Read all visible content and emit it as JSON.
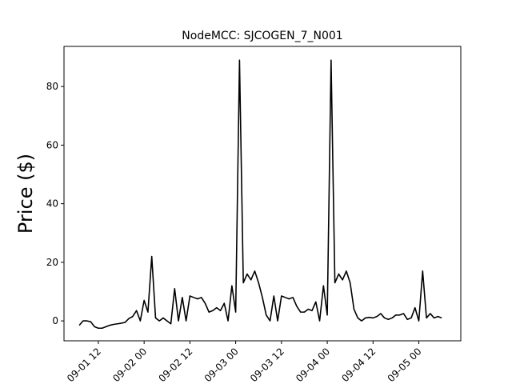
{
  "chart_data": {
    "type": "line",
    "title": "NodeMCC: SJCOGEN_7_N001",
    "y_label": "Price ($)",
    "x": [
      "09-01 07",
      "09-01 08",
      "09-01 09",
      "09-01 10",
      "09-01 11",
      "09-01 12",
      "09-01 13",
      "09-01 14",
      "09-01 15",
      "09-01 16",
      "09-01 17",
      "09-01 18",
      "09-01 19",
      "09-01 20",
      "09-01 21",
      "09-01 22",
      "09-01 23",
      "09-02 00",
      "09-02 01",
      "09-02 02",
      "09-02 03",
      "09-02 04",
      "09-02 05",
      "09-02 06",
      "09-02 07",
      "09-02 08",
      "09-02 09",
      "09-02 10",
      "09-02 11",
      "09-02 12",
      "09-02 13",
      "09-02 14",
      "09-02 15",
      "09-02 16",
      "09-02 17",
      "09-02 18",
      "09-02 19",
      "09-02 20",
      "09-02 21",
      "09-02 22",
      "09-02 23",
      "09-03 00",
      "09-03 01",
      "09-03 02",
      "09-03 03",
      "09-03 04",
      "09-03 05",
      "09-03 06",
      "09-03 07",
      "09-03 08",
      "09-03 09",
      "09-03 10",
      "09-03 11",
      "09-03 12",
      "09-03 13",
      "09-03 14",
      "09-03 15",
      "09-03 16",
      "09-03 17",
      "09-03 18",
      "09-03 19",
      "09-03 20",
      "09-03 21",
      "09-03 22",
      "09-03 23",
      "09-04 00",
      "09-04 01",
      "09-04 02",
      "09-04 03",
      "09-04 04",
      "09-04 05",
      "09-04 06",
      "09-04 07",
      "09-04 08",
      "09-04 09",
      "09-04 10",
      "09-04 11",
      "09-04 12",
      "09-04 13",
      "09-04 14",
      "09-04 15",
      "09-04 16",
      "09-04 17",
      "09-04 18",
      "09-04 19",
      "09-04 20",
      "09-04 21",
      "09-04 22",
      "09-04 23",
      "09-05 00",
      "09-05 01",
      "09-05 02",
      "09-05 03",
      "09-05 04",
      "09-05 05",
      "09-05 06"
    ],
    "series": [
      {
        "name": "SJCOGEN_7_N001",
        "color": "#000000",
        "values": [
          -1.5,
          0,
          0,
          -0.3,
          -2,
          -2.5,
          -2.5,
          -2,
          -1.5,
          -1.2,
          -1,
          -0.8,
          -0.5,
          0.8,
          1.5,
          3.5,
          0,
          7,
          3,
          22,
          1,
          0,
          1,
          0,
          -1,
          11,
          0,
          8,
          0,
          8.5,
          8,
          7.5,
          8,
          6,
          3,
          3.5,
          4.5,
          3.5,
          6,
          0,
          12,
          3,
          89,
          13,
          16,
          14,
          17,
          13,
          8,
          2,
          0,
          8.5,
          0,
          8.5,
          8,
          7.5,
          8,
          5,
          3,
          3,
          4,
          3.5,
          6.5,
          0,
          12,
          2,
          89,
          13,
          16,
          14,
          17,
          13,
          4,
          1,
          0,
          1,
          1.2,
          1,
          1.5,
          2.5,
          1,
          0.5,
          1,
          2,
          2,
          2.5,
          0.5,
          1,
          4.5,
          0,
          17,
          1,
          2.5,
          1,
          1.5,
          1
        ]
      }
    ],
    "xlim": [
      "09-01 03",
      "09-05 11"
    ],
    "xticks": [
      "09-01 12",
      "09-02 00",
      "09-02 12",
      "09-03 00",
      "09-03 12",
      "09-04 00",
      "09-04 12",
      "09-05 00"
    ],
    "ylim": [
      -6.8,
      93.7
    ],
    "yticks": [
      0,
      20,
      40,
      60,
      80
    ]
  }
}
